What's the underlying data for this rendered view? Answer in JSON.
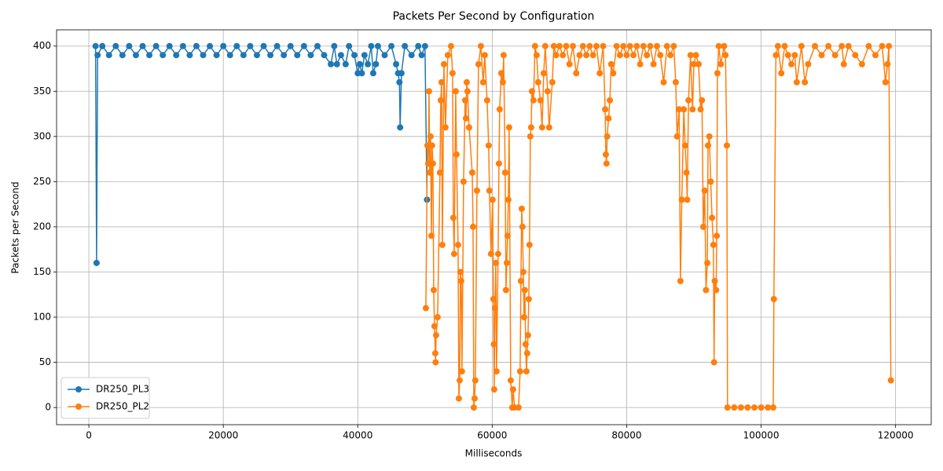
{
  "chart_data": {
    "type": "line",
    "title": "Packets Per Second by Configuration",
    "x_label": "Milliseconds",
    "y_label": "Packets per Second",
    "xlim": [
      -4800,
      125300
    ],
    "xticks": [
      0,
      20000,
      40000,
      60000,
      80000,
      100000,
      120000
    ],
    "ylim": [
      -19,
      418
    ],
    "yticks": [
      0,
      50,
      100,
      150,
      200,
      250,
      300,
      350,
      400
    ],
    "grid": true,
    "legend": "lower left",
    "series": [
      {
        "name": "DR250_PL3",
        "color": "#1f77b4",
        "x": [
          1000,
          1150,
          1300,
          2000,
          3000,
          4000,
          5000,
          6000,
          7000,
          8000,
          9000,
          10000,
          11000,
          12000,
          13000,
          14000,
          15000,
          16000,
          17000,
          18000,
          19000,
          20000,
          21000,
          22000,
          23000,
          24000,
          25000,
          26000,
          27000,
          28000,
          29000,
          30000,
          31000,
          32000,
          33000,
          34000,
          35000,
          36000,
          36500,
          36900,
          37500,
          38200,
          38700,
          39500,
          40000,
          40300,
          40600,
          41000,
          41500,
          42000,
          42300,
          42700,
          43000,
          44000,
          45000,
          45700,
          46000,
          46200,
          46300,
          46500,
          47000,
          48000,
          49000,
          49500,
          50000,
          50300
        ],
        "values": [
          400,
          160,
          390,
          400,
          390,
          400,
          390,
          400,
          390,
          400,
          390,
          400,
          390,
          400,
          390,
          400,
          390,
          400,
          390,
          400,
          390,
          400,
          390,
          400,
          390,
          400,
          390,
          400,
          390,
          400,
          390,
          400,
          390,
          400,
          390,
          400,
          390,
          380,
          400,
          380,
          390,
          380,
          400,
          390,
          370,
          380,
          370,
          390,
          380,
          400,
          370,
          380,
          400,
          390,
          400,
          380,
          370,
          360,
          310,
          370,
          400,
          390,
          400,
          390,
          400,
          230
        ]
      },
      {
        "name": "DR250_PL2",
        "color": "#ff7f0e",
        "x": [
          50130,
          50360,
          50480,
          50600,
          50700,
          50830,
          50950,
          51060,
          51180,
          51300,
          51410,
          51530,
          51580,
          51650,
          51880,
          52230,
          52350,
          52470,
          52580,
          52820,
          53050,
          53400,
          53870,
          54100,
          54220,
          54340,
          54570,
          54690,
          54920,
          55040,
          55160,
          55270,
          55390,
          55500,
          55740,
          55970,
          56090,
          56210,
          56320,
          56560,
          57030,
          57150,
          57260,
          57380,
          57490,
          57730,
          57960,
          58310,
          58660,
          58890,
          59240,
          59470,
          59590,
          59820,
          60060,
          60180,
          60240,
          60290,
          60410,
          60530,
          60640,
          60880,
          61000,
          61110,
          61350,
          61580,
          61700,
          61930,
          62050,
          62170,
          62280,
          62400,
          62520,
          62750,
          62980,
          63100,
          63330,
          63920,
          64150,
          64270,
          64390,
          64500,
          64620,
          64740,
          64850,
          64970,
          65090,
          65200,
          65320,
          65440,
          65550,
          65670,
          65790,
          65910,
          66140,
          66370,
          66610,
          66840,
          67190,
          67420,
          67660,
          67890,
          68240,
          68470,
          68940,
          69170,
          69500,
          70000,
          70500,
          71000,
          71500,
          72000,
          72500,
          73000,
          73500,
          74000,
          74500,
          75000,
          75500,
          76000,
          76500,
          76800,
          76900,
          77000,
          77100,
          77300,
          77500,
          77700,
          78000,
          78500,
          79000,
          79500,
          80000,
          80500,
          81000,
          81500,
          82000,
          82500,
          83000,
          83500,
          84000,
          84500,
          85000,
          85500,
          86000,
          86500,
          87000,
          87300,
          87500,
          87800,
          88000,
          88200,
          88500,
          88700,
          88900,
          89000,
          89200,
          89500,
          89800,
          90000,
          90300,
          90700,
          91000,
          91200,
          91400,
          91600,
          91800,
          92000,
          92100,
          92300,
          92500,
          92700,
          92900,
          93000,
          93100,
          93300,
          93400,
          93500,
          93700,
          94000,
          94500,
          94700,
          94900,
          95000,
          96000,
          97000,
          98000,
          99000,
          100000,
          101000,
          101800,
          101900,
          102200,
          102500,
          103000,
          103500,
          104000,
          104500,
          105000,
          105300,
          106000,
          106500,
          107000,
          108000,
          109000,
          110000,
          111000,
          112000,
          112300,
          113000,
          114000,
          115000,
          116000,
          117000,
          118000,
          118500,
          118800,
          119000,
          119300
        ],
        "values": [
          110,
          290,
          270,
          350,
          260,
          300,
          190,
          290,
          270,
          130,
          90,
          60,
          50,
          80,
          100,
          260,
          340,
          360,
          180,
          380,
          310,
          390,
          400,
          370,
          210,
          170,
          350,
          280,
          180,
          10,
          30,
          150,
          140,
          40,
          250,
          340,
          320,
          360,
          350,
          310,
          260,
          200,
          0,
          10,
          30,
          240,
          380,
          400,
          360,
          390,
          340,
          290,
          240,
          170,
          230,
          120,
          70,
          20,
          110,
          160,
          40,
          170,
          270,
          330,
          370,
          360,
          390,
          260,
          130,
          160,
          190,
          230,
          310,
          30,
          0,
          20,
          0,
          0,
          40,
          140,
          220,
          200,
          150,
          100,
          130,
          70,
          40,
          60,
          80,
          120,
          180,
          300,
          310,
          350,
          340,
          400,
          390,
          360,
          340,
          310,
          370,
          400,
          350,
          310,
          360,
          400,
          390,
          400,
          390,
          400,
          380,
          400,
          370,
          390,
          400,
          390,
          400,
          390,
          400,
          370,
          400,
          330,
          280,
          270,
          300,
          320,
          340,
          380,
          370,
          400,
          390,
          400,
          390,
          400,
          390,
          400,
          380,
          400,
          390,
          400,
          380,
          400,
          390,
          360,
          400,
          390,
          400,
          360,
          300,
          330,
          140,
          230,
          330,
          290,
          260,
          230,
          340,
          390,
          330,
          380,
          390,
          380,
          330,
          340,
          200,
          240,
          130,
          160,
          290,
          300,
          250,
          210,
          180,
          50,
          140,
          130,
          190,
          370,
          400,
          380,
          400,
          390,
          290,
          0,
          0,
          0,
          0,
          0,
          0,
          0,
          0,
          120,
          390,
          400,
          370,
          400,
          390,
          380,
          390,
          360,
          400,
          360,
          380,
          400,
          390,
          400,
          390,
          400,
          380,
          400,
          390,
          380,
          400,
          390,
          400,
          360,
          380,
          400,
          30
        ]
      }
    ]
  }
}
